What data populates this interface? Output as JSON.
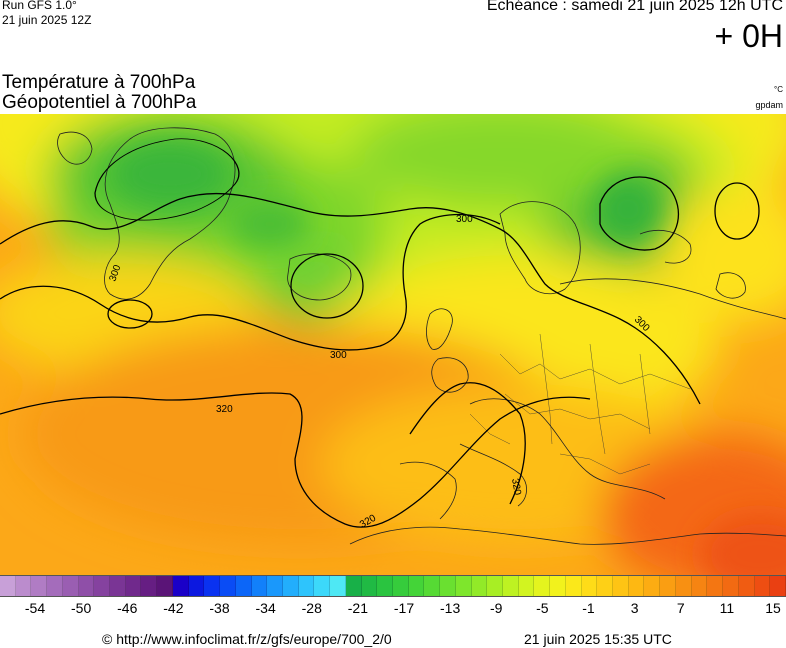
{
  "header": {
    "run_label": "Run GFS 1.0°",
    "run_date": "21 juin 2025 12Z",
    "echeance": "Echéance : samedi 21 juin 2025 12h UTC",
    "lead_time": "+ 0H"
  },
  "titles": {
    "temperature": "Température à 700hPa",
    "geopotential": "Géopotentiel à 700hPa"
  },
  "units": {
    "temperature": "°C",
    "geopotential": "gpdam"
  },
  "map": {
    "contour_labels": [
      "300",
      "300",
      "300",
      "300",
      "320",
      "320",
      "320"
    ]
  },
  "colorbar": {
    "labels": [
      "-54",
      "-50",
      "-46",
      "-42",
      "-38",
      "-34",
      "-28",
      "-21",
      "-17",
      "-13",
      "-9",
      "-5",
      "-1",
      "3",
      "7",
      "11",
      "15"
    ],
    "colors": [
      "#c8a0d8",
      "#bb8ccd",
      "#b07cc4",
      "#a46cbb",
      "#9a5eb2",
      "#8f4fa8",
      "#85429f",
      "#7a3595",
      "#70298c",
      "#661e83",
      "#5a1477",
      "#1a00c8",
      "#0c18e0",
      "#0a32f0",
      "#0a4cf5",
      "#0c66f8",
      "#1280fa",
      "#1a98fb",
      "#22aefc",
      "#2ec4fc",
      "#3cd8fa",
      "#4ee8f4",
      "#18b048",
      "#20ba44",
      "#2ac440",
      "#36cc3c",
      "#44d438",
      "#56da34",
      "#6ae030",
      "#7ee62c",
      "#92ea28",
      "#a8ee24",
      "#bef222",
      "#d2f420",
      "#e4f41e",
      "#f2f21c",
      "#fbe81a",
      "#fedc18",
      "#fed016",
      "#fec414",
      "#feb812",
      "#fcac12",
      "#fa9e12",
      "#f89012",
      "#f68412",
      "#f47612",
      "#f26a12",
      "#f05c12",
      "#ee4e12",
      "#ea4012"
    ]
  },
  "footer": {
    "copyright": "© http://www.infoclimat.fr/z/gfs/europe/700_2/0",
    "generated": "21 juin 2025 15:35 UTC"
  }
}
